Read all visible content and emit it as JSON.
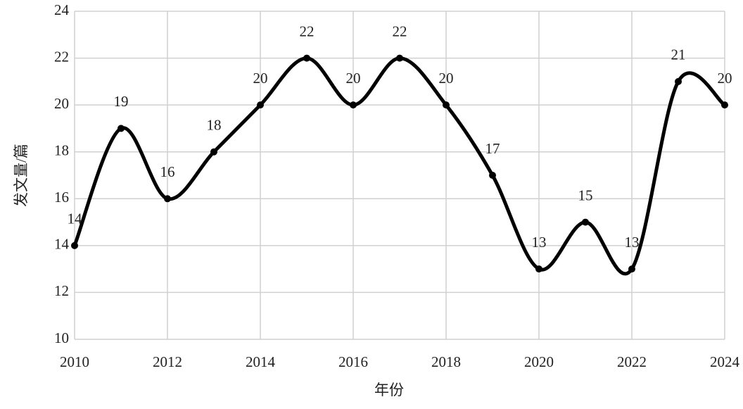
{
  "chart_data": {
    "type": "line",
    "x_label": "年份",
    "y_label": "发文量/篇",
    "x": [
      2010,
      2011,
      2012,
      2013,
      2014,
      2015,
      2016,
      2017,
      2018,
      2019,
      2020,
      2021,
      2022,
      2023,
      2024
    ],
    "values": [
      14,
      19,
      16,
      18,
      20,
      22,
      20,
      22,
      20,
      17,
      13,
      15,
      13,
      21,
      20
    ],
    "color": "#000000",
    "smooth": true,
    "markers": true,
    "data_labels": true,
    "xlim": [
      2010,
      2024
    ],
    "xticks": [
      2010,
      2012,
      2014,
      2016,
      2018,
      2020,
      2022,
      2024
    ],
    "ylim": [
      10,
      24
    ],
    "yticks": [
      10,
      12,
      14,
      16,
      18,
      20,
      22,
      24
    ],
    "grid": true
  }
}
